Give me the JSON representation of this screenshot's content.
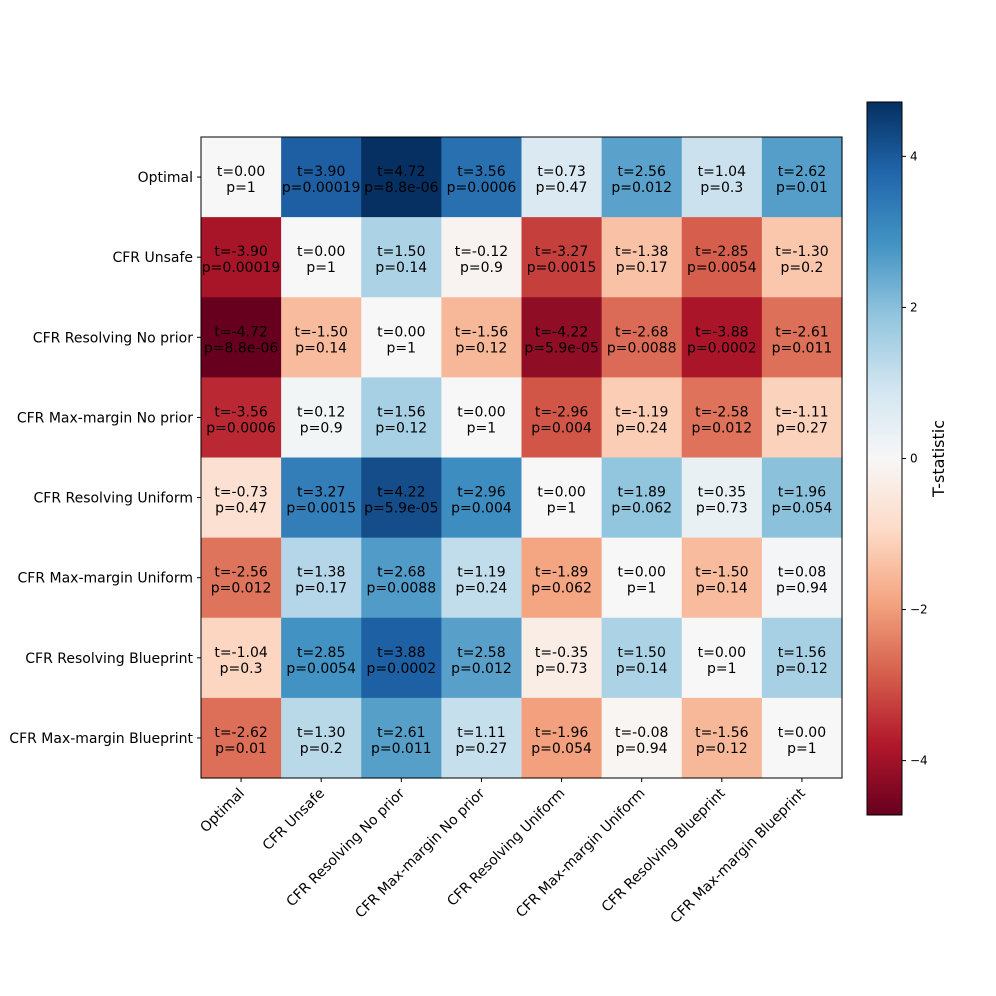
{
  "chart_data": {
    "type": "heatmap",
    "title": "",
    "xlabel": "",
    "ylabel": "",
    "categories": [
      "Optimal",
      "CFR Unsafe",
      "CFR Resolving No prior",
      "CFR Max-margin No prior",
      "CFR Resolving Uniform",
      "CFR Max-margin Uniform",
      "CFR Resolving Blueprint",
      "CFR Max-margin Blueprint"
    ],
    "t_values": [
      [
        0.0,
        3.9,
        4.72,
        3.56,
        0.73,
        2.56,
        1.04,
        2.62
      ],
      [
        -3.9,
        0.0,
        1.5,
        -0.12,
        -3.27,
        -1.38,
        -2.85,
        -1.3
      ],
      [
        -4.72,
        -1.5,
        0.0,
        -1.56,
        -4.22,
        -2.68,
        -3.88,
        -2.61
      ],
      [
        -3.56,
        0.12,
        1.56,
        0.0,
        -2.96,
        -1.19,
        -2.58,
        -1.11
      ],
      [
        -0.73,
        3.27,
        4.22,
        2.96,
        0.0,
        1.89,
        0.35,
        1.96
      ],
      [
        -2.56,
        1.38,
        2.68,
        1.19,
        -1.89,
        0.0,
        -1.5,
        0.08
      ],
      [
        -1.04,
        2.85,
        3.88,
        2.58,
        -0.35,
        1.5,
        0.0,
        1.56
      ],
      [
        -2.62,
        1.3,
        2.61,
        1.11,
        -1.96,
        -0.08,
        -1.56,
        0.0
      ]
    ],
    "cell_labels": [
      [
        [
          "t=0.00",
          "p=1"
        ],
        [
          "t=3.90",
          "p=0.00019"
        ],
        [
          "t=4.72",
          "p=8.8e-06"
        ],
        [
          "t=3.56",
          "p=0.0006"
        ],
        [
          "t=0.73",
          "p=0.47"
        ],
        [
          "t=2.56",
          "p=0.012"
        ],
        [
          "t=1.04",
          "p=0.3"
        ],
        [
          "t=2.62",
          "p=0.01"
        ]
      ],
      [
        [
          "t=-3.90",
          "p=0.00019"
        ],
        [
          "t=0.00",
          "p=1"
        ],
        [
          "t=1.50",
          "p=0.14"
        ],
        [
          "t=-0.12",
          "p=0.9"
        ],
        [
          "t=-3.27",
          "p=0.0015"
        ],
        [
          "t=-1.38",
          "p=0.17"
        ],
        [
          "t=-2.85",
          "p=0.0054"
        ],
        [
          "t=-1.30",
          "p=0.2"
        ]
      ],
      [
        [
          "t=-4.72",
          "p=8.8e-06"
        ],
        [
          "t=-1.50",
          "p=0.14"
        ],
        [
          "t=0.00",
          "p=1"
        ],
        [
          "t=-1.56",
          "p=0.12"
        ],
        [
          "t=-4.22",
          "p=5.9e-05"
        ],
        [
          "t=-2.68",
          "p=0.0088"
        ],
        [
          "t=-3.88",
          "p=0.0002"
        ],
        [
          "t=-2.61",
          "p=0.011"
        ]
      ],
      [
        [
          "t=-3.56",
          "p=0.0006"
        ],
        [
          "t=0.12",
          "p=0.9"
        ],
        [
          "t=1.56",
          "p=0.12"
        ],
        [
          "t=0.00",
          "p=1"
        ],
        [
          "t=-2.96",
          "p=0.004"
        ],
        [
          "t=-1.19",
          "p=0.24"
        ],
        [
          "t=-2.58",
          "p=0.012"
        ],
        [
          "t=-1.11",
          "p=0.27"
        ]
      ],
      [
        [
          "t=-0.73",
          "p=0.47"
        ],
        [
          "t=3.27",
          "p=0.0015"
        ],
        [
          "t=4.22",
          "p=5.9e-05"
        ],
        [
          "t=2.96",
          "p=0.004"
        ],
        [
          "t=0.00",
          "p=1"
        ],
        [
          "t=1.89",
          "p=0.062"
        ],
        [
          "t=0.35",
          "p=0.73"
        ],
        [
          "t=1.96",
          "p=0.054"
        ]
      ],
      [
        [
          "t=-2.56",
          "p=0.012"
        ],
        [
          "t=1.38",
          "p=0.17"
        ],
        [
          "t=2.68",
          "p=0.0088"
        ],
        [
          "t=1.19",
          "p=0.24"
        ],
        [
          "t=-1.89",
          "p=0.062"
        ],
        [
          "t=0.00",
          "p=1"
        ],
        [
          "t=-1.50",
          "p=0.14"
        ],
        [
          "t=0.08",
          "p=0.94"
        ]
      ],
      [
        [
          "t=-1.04",
          "p=0.3"
        ],
        [
          "t=2.85",
          "p=0.0054"
        ],
        [
          "t=3.88",
          "p=0.0002"
        ],
        [
          "t=2.58",
          "p=0.012"
        ],
        [
          "t=-0.35",
          "p=0.73"
        ],
        [
          "t=1.50",
          "p=0.14"
        ],
        [
          "t=0.00",
          "p=1"
        ],
        [
          "t=1.56",
          "p=0.12"
        ]
      ],
      [
        [
          "t=-2.62",
          "p=0.01"
        ],
        [
          "t=1.30",
          "p=0.2"
        ],
        [
          "t=2.61",
          "p=0.011"
        ],
        [
          "t=1.11",
          "p=0.27"
        ],
        [
          "t=-1.96",
          "p=0.054"
        ],
        [
          "t=-0.08",
          "p=0.94"
        ],
        [
          "t=-1.56",
          "p=0.12"
        ],
        [
          "t=0.00",
          "p=1"
        ]
      ]
    ],
    "colormap": "RdBu",
    "vmin": -4.72,
    "vmax": 4.72,
    "colorbar": {
      "label": "T-statistic",
      "ticks": [
        -4,
        -2,
        0,
        2,
        4
      ],
      "tick_labels": [
        "−4",
        "−2",
        "0",
        "2",
        "4"
      ]
    },
    "grid": false
  }
}
